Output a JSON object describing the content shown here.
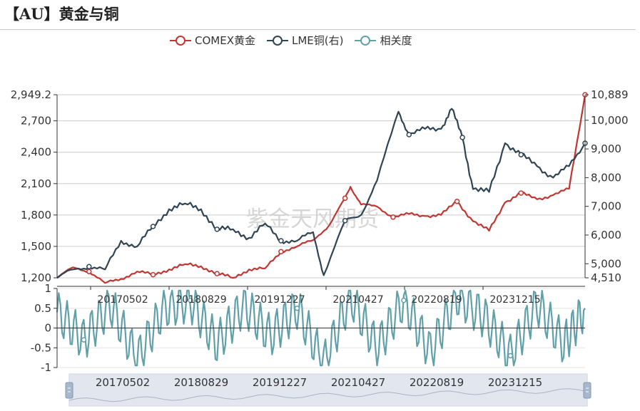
{
  "title": "【AU】黄金与铜",
  "watermark": "紫金天风期货",
  "legend": [
    "COMEX黄金",
    "LME铜(右)",
    "相关度"
  ],
  "colors": {
    "gold": "#c23531",
    "copper": "#2f4554",
    "corr": "#61a0a8",
    "grid": "#cccccc",
    "slider_fill": "#d7deea"
  },
  "chart_data": {
    "type": "line",
    "x_tick_labels": [
      "20170502",
      "20180829",
      "20191227",
      "20210427",
      "20220819",
      "20231215"
    ],
    "x_range": [
      "2016-01",
      "2024-04"
    ],
    "series": [
      {
        "name": "COMEX黄金",
        "axis": "left",
        "x": [
          "2016-01",
          "2016-04",
          "2016-07",
          "2016-10",
          "2017-01",
          "2017-04",
          "2017-07",
          "2017-10",
          "2018-01",
          "2018-04",
          "2018-07",
          "2018-10",
          "2019-01",
          "2019-04",
          "2019-07",
          "2019-10",
          "2020-01",
          "2020-04",
          "2020-07",
          "2020-08",
          "2020-10",
          "2021-01",
          "2021-04",
          "2021-07",
          "2021-10",
          "2022-01",
          "2022-04",
          "2022-07",
          "2022-10",
          "2023-01",
          "2023-04",
          "2023-07",
          "2023-10",
          "2024-01",
          "2024-04"
        ],
        "values": [
          1200,
          1300,
          1260,
          1150,
          1190,
          1260,
          1230,
          1280,
          1330,
          1310,
          1240,
          1200,
          1280,
          1290,
          1450,
          1500,
          1560,
          1700,
          1960,
          2070,
          1900,
          1880,
          1780,
          1810,
          1790,
          1800,
          1930,
          1740,
          1650,
          1920,
          2010,
          1950,
          1990,
          2050,
          2949.2
        ]
      },
      {
        "name": "LME铜(右)",
        "axis": "right",
        "x": [
          "2016-01",
          "2016-04",
          "2016-07",
          "2016-10",
          "2017-01",
          "2017-04",
          "2017-07",
          "2017-10",
          "2018-01",
          "2018-04",
          "2018-07",
          "2018-10",
          "2019-01",
          "2019-04",
          "2019-07",
          "2019-10",
          "2020-01",
          "2020-03",
          "2020-07",
          "2020-10",
          "2021-01",
          "2021-05",
          "2021-07",
          "2021-10",
          "2022-01",
          "2022-03",
          "2022-05",
          "2022-07",
          "2022-10",
          "2023-01",
          "2023-04",
          "2023-07",
          "2023-10",
          "2024-01",
          "2024-04"
        ],
        "values": [
          4500,
          4800,
          4900,
          4800,
          5800,
          5600,
          6300,
          6900,
          7100,
          6900,
          6200,
          6200,
          5900,
          6400,
          5800,
          5800,
          6100,
          4600,
          6500,
          6700,
          7900,
          10300,
          9500,
          9700,
          9700,
          10400,
          9400,
          7600,
          7500,
          9200,
          8800,
          8400,
          8000,
          8400,
          9200
        ]
      },
      {
        "name": "相关度",
        "axis": "bottom",
        "x": [
          "2016-01",
          "2016-06",
          "2016-11",
          "2017-04",
          "2017-09",
          "2018-02",
          "2018-07",
          "2018-12",
          "2019-05",
          "2019-10",
          "2020-03",
          "2020-08",
          "2021-01",
          "2021-06",
          "2021-11",
          "2022-04",
          "2022-09",
          "2023-02",
          "2023-07",
          "2023-12",
          "2024-04"
        ],
        "values": [
          0.4,
          -0.3,
          0.6,
          -0.8,
          0.5,
          0.7,
          -0.4,
          0.6,
          -0.2,
          0.5,
          -0.9,
          0.8,
          -0.5,
          0.7,
          -0.6,
          0.8,
          0.3,
          -0.7,
          0.6,
          -0.4,
          0.5
        ]
      }
    ],
    "y_left": {
      "range": [
        1200,
        2949.2
      ],
      "ticks": [
        "1,200",
        "1,500",
        "1,800",
        "2,100",
        "2,400",
        "2,700",
        "2,949.2"
      ]
    },
    "y_right": {
      "range": [
        4510,
        10889
      ],
      "ticks": [
        "4,510",
        "5,000",
        "6,000",
        "7,000",
        "8,000",
        "9,000",
        "10,000",
        "10,889"
      ]
    },
    "y_bottom": {
      "range": [
        -1,
        1
      ],
      "ticks": [
        "-1",
        "-0.5",
        "0",
        "0.5",
        "1"
      ]
    },
    "grid": true,
    "legend_position": "top"
  }
}
